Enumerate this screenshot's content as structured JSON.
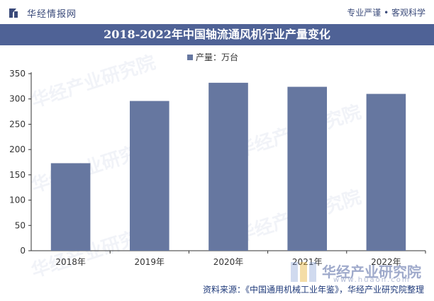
{
  "header": {
    "brand": "华经情报网",
    "tagline": "专业严谨 • 客观科学",
    "logo_icon": "bar-logo-icon"
  },
  "title": "2018-2022年中国轴流通风机行业产量变化",
  "legend": {
    "label": "产量：万台"
  },
  "chart_data": {
    "type": "bar",
    "title": "2018-2022年中国轴流通风机行业产量变化",
    "categories": [
      "2018年",
      "2019年",
      "2020年",
      "2021年",
      "2022年"
    ],
    "series": [
      {
        "name": "产量：万台",
        "values": [
          173,
          296,
          332,
          324,
          310
        ]
      }
    ],
    "ylim": [
      0,
      350
    ],
    "yticks": [
      0,
      50,
      100,
      150,
      200,
      250,
      300,
      350
    ],
    "xlabel": "",
    "ylabel": "",
    "bar_color": "#6677a0",
    "grid": false
  },
  "footer": {
    "source": "资料来源：《中国通用机械工业年鉴》，华经产业研究院整理"
  },
  "watermark": {
    "text": "华经产业研究院",
    "url": "www.huaon.com"
  },
  "colors": {
    "title_bg": "#4f6296",
    "bar": "#6677a0",
    "text": "#3a4a7a"
  }
}
